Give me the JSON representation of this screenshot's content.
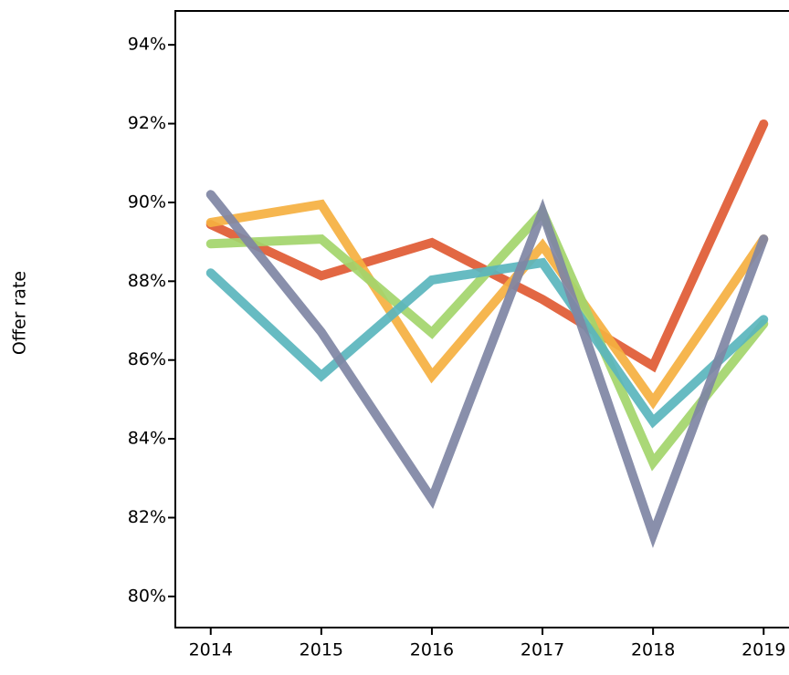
{
  "chart_data": {
    "type": "line",
    "y_label": "Offer rate",
    "x": [
      2014,
      2015,
      2016,
      2017,
      2018,
      2019
    ],
    "xlim": [
      2013.68,
      2019.32
    ],
    "xticks": [
      2014,
      2015,
      2016,
      2017,
      2018,
      2019
    ],
    "ylim": [
      79.21,
      94.86
    ],
    "yticks": [
      {
        "value": 80,
        "label": "80%"
      },
      {
        "value": 82,
        "label": "82%"
      },
      {
        "value": 84,
        "label": "84%"
      },
      {
        "value": 86,
        "label": "86%"
      },
      {
        "value": 88,
        "label": "88%"
      },
      {
        "value": 90,
        "label": "90%"
      },
      {
        "value": 92,
        "label": "92%"
      },
      {
        "value": 94,
        "label": "94%"
      }
    ],
    "series": [
      {
        "color": "#e05a33",
        "values": [
          89.44,
          88.14,
          88.98,
          87.54,
          85.85,
          91.99
        ]
      },
      {
        "color": "#f5b040",
        "values": [
          89.49,
          89.95,
          85.6,
          88.9,
          84.95,
          89.07
        ]
      },
      {
        "color": "#a3d56b",
        "values": [
          88.95,
          89.07,
          86.69,
          89.76,
          83.4,
          86.92
        ]
      },
      {
        "color": "#5ab5bd",
        "values": [
          88.21,
          85.6,
          88.03,
          88.47,
          84.44,
          87.03
        ]
      },
      {
        "color": "#7f86a4",
        "values": [
          90.2,
          86.71,
          82.47,
          89.76,
          81.57,
          89.07
        ]
      }
    ]
  }
}
